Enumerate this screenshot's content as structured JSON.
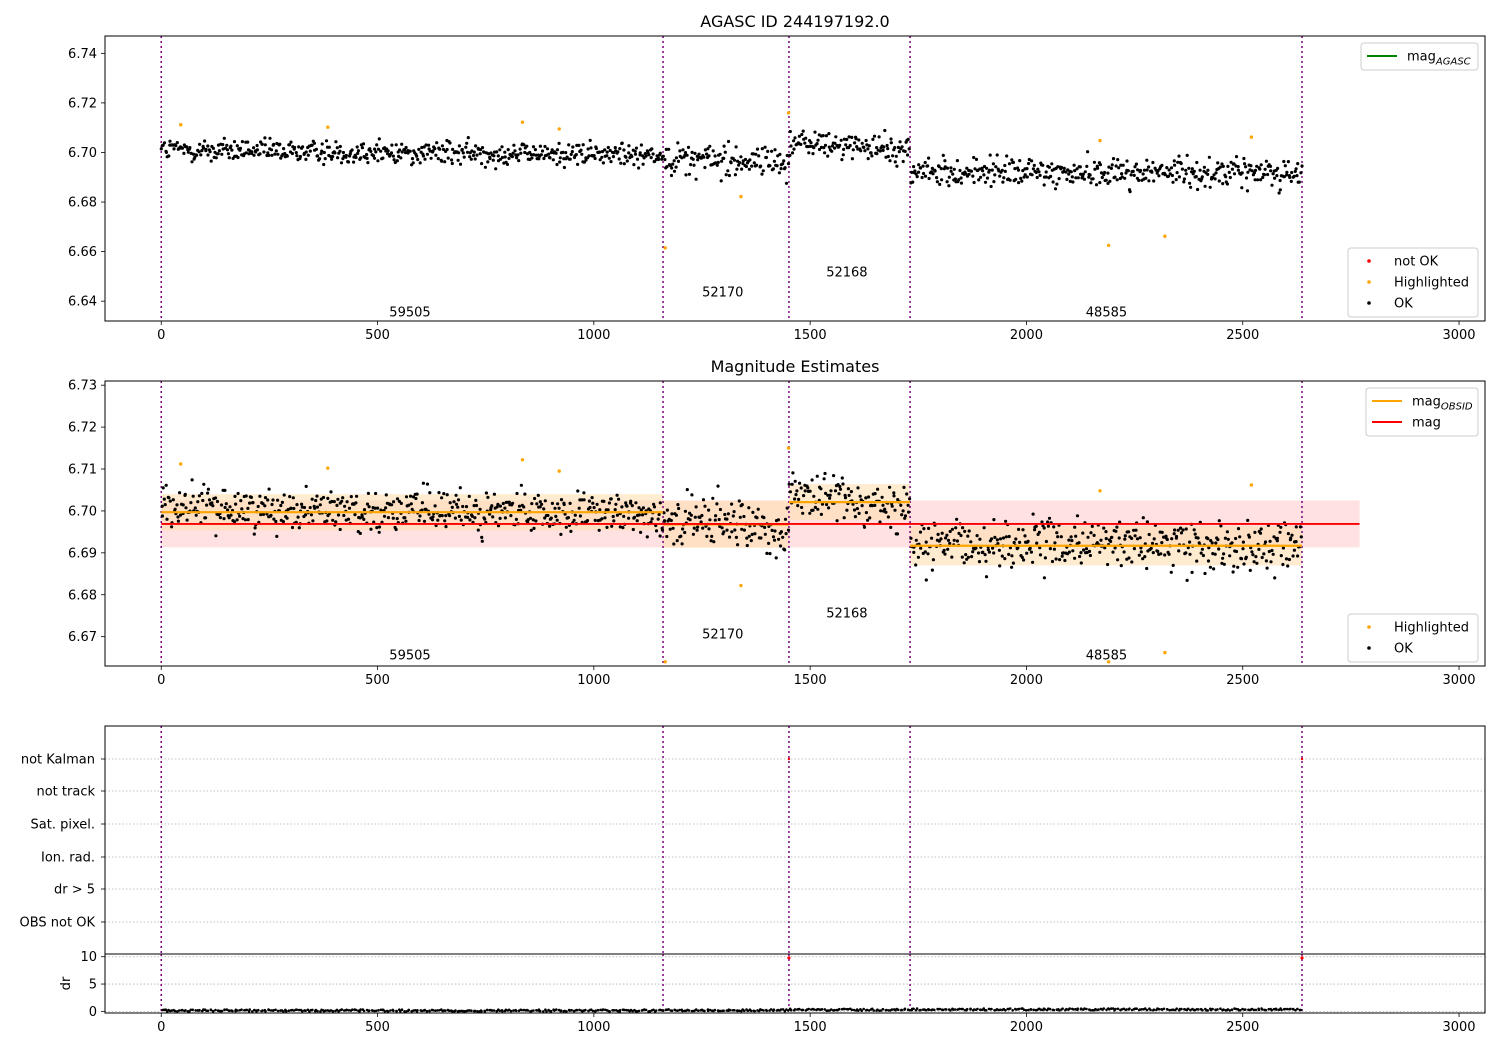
{
  "chart_data": [
    {
      "type": "scatter",
      "title": "AGASC ID 244197192.0",
      "xlim": [
        -130,
        3060
      ],
      "ylim": [
        6.632,
        6.747
      ],
      "xticks": [
        0,
        500,
        1000,
        1500,
        2000,
        2500,
        3000
      ],
      "yticks": [
        6.64,
        6.66,
        6.68,
        6.7,
        6.72,
        6.74
      ],
      "ytick_labels": [
        "6.64",
        "6.66",
        "6.68",
        "6.70",
        "6.72",
        "6.74"
      ],
      "obsid_boundaries": [
        0,
        1160,
        1451,
        1731,
        2637
      ],
      "segment_labels": [
        {
          "text": "59505",
          "x": 575,
          "y": 6.6355
        },
        {
          "text": "52170",
          "x": 1298,
          "y": 6.6435
        },
        {
          "text": "52168",
          "x": 1585,
          "y": 6.6515
        },
        {
          "text": "48585",
          "x": 2185,
          "y": 6.6355
        }
      ],
      "segment_trends": [
        {
          "x0": 0,
          "x1": 1160,
          "start": 6.701,
          "end": 6.699,
          "spread": 0.004
        },
        {
          "x0": 1160,
          "x1": 1451,
          "start": 6.698,
          "end": 6.696,
          "spread": 0.0055
        },
        {
          "x0": 1451,
          "x1": 1731,
          "start": 6.704,
          "end": 6.701,
          "spread": 0.0045
        },
        {
          "x0": 1731,
          "x1": 2637,
          "start": 6.692,
          "end": 6.692,
          "spread": 0.005
        }
      ],
      "highlighted_points": [
        {
          "x": 45,
          "y": 6.7112
        },
        {
          "x": 385,
          "y": 6.7102
        },
        {
          "x": 835,
          "y": 6.7122
        },
        {
          "x": 920,
          "y": 6.7095
        },
        {
          "x": 1165,
          "y": 6.6615
        },
        {
          "x": 1340,
          "y": 6.6822
        },
        {
          "x": 1450,
          "y": 6.716
        },
        {
          "x": 2170,
          "y": 6.7048
        },
        {
          "x": 2190,
          "y": 6.6625
        },
        {
          "x": 2320,
          "y": 6.6662
        },
        {
          "x": 2520,
          "y": 6.7062
        }
      ],
      "legend_upper": [
        {
          "label": "mag",
          "sub": "AGASC",
          "color": "#008000",
          "kind": "line"
        }
      ],
      "legend_lower": [
        {
          "label": "not OK",
          "color": "#ff0000",
          "kind": "dot"
        },
        {
          "label": "Highlighted",
          "color": "#ffa500",
          "kind": "dot"
        },
        {
          "label": "OK",
          "color": "#000000",
          "kind": "dot"
        }
      ]
    },
    {
      "type": "scatter",
      "title": "Magnitude Estimates",
      "xlim": [
        -130,
        3060
      ],
      "ylim": [
        6.663,
        6.731
      ],
      "xticks": [
        0,
        500,
        1000,
        1500,
        2000,
        2500,
        3000
      ],
      "yticks": [
        6.67,
        6.68,
        6.69,
        6.7,
        6.71,
        6.72,
        6.73
      ],
      "ytick_labels": [
        "6.67",
        "6.68",
        "6.69",
        "6.70",
        "6.71",
        "6.72",
        "6.73"
      ],
      "obsid_boundaries": [
        0,
        1160,
        1451,
        1731,
        2637
      ],
      "segment_labels": [
        {
          "text": "59505",
          "x": 575,
          "y": 6.6655
        },
        {
          "text": "52170",
          "x": 1298,
          "y": 6.6705
        },
        {
          "text": "52168",
          "x": 1585,
          "y": 6.6755
        },
        {
          "text": "48585",
          "x": 2185,
          "y": 6.6655
        }
      ],
      "mag": {
        "value": 6.6969,
        "lower": 6.6913,
        "upper": 6.7025,
        "x0": 0,
        "x1": 2770,
        "color": "#ff0000"
      },
      "mag_obsid": [
        {
          "x0": 0,
          "x1": 1160,
          "value": 6.6997,
          "lower": 6.6954,
          "upper": 6.704
        },
        {
          "x0": 1160,
          "x1": 1451,
          "value": 6.6968,
          "lower": 6.6912,
          "upper": 6.7024
        },
        {
          "x0": 1451,
          "x1": 1731,
          "value": 6.7021,
          "lower": 6.6978,
          "upper": 6.7064
        },
        {
          "x0": 1731,
          "x1": 2637,
          "value": 6.6917,
          "lower": 6.687,
          "upper": 6.6964
        }
      ],
      "highlighted_points": [
        {
          "x": 45,
          "y": 6.7112
        },
        {
          "x": 385,
          "y": 6.7102
        },
        {
          "x": 835,
          "y": 6.7122
        },
        {
          "x": 920,
          "y": 6.7095
        },
        {
          "x": 1165,
          "y": 6.664
        },
        {
          "x": 1340,
          "y": 6.6822
        },
        {
          "x": 1450,
          "y": 6.715
        },
        {
          "x": 2170,
          "y": 6.7048
        },
        {
          "x": 2190,
          "y": 6.664
        },
        {
          "x": 2320,
          "y": 6.6662
        },
        {
          "x": 2520,
          "y": 6.7062
        }
      ],
      "legend_upper": [
        {
          "label": "mag",
          "sub": "OBSID",
          "color": "#ffa500",
          "kind": "line"
        },
        {
          "label": "mag",
          "sub": "",
          "color": "#ff0000",
          "kind": "line"
        }
      ],
      "legend_lower": [
        {
          "label": "Highlighted",
          "color": "#ffa500",
          "kind": "dot"
        },
        {
          "label": "OK",
          "color": "#000000",
          "kind": "dot"
        }
      ]
    },
    {
      "type": "scatter",
      "title": "",
      "xlim": [
        -130,
        3060
      ],
      "obsid_boundaries": [
        0,
        1160,
        1451,
        1731,
        2637
      ],
      "flag_labels": [
        "not Kalman",
        "not track",
        "Sat. pixel.",
        "Ion. rad.",
        "dr > 5",
        "OBS not OK"
      ],
      "flag_points": [
        {
          "flag": "not Kalman",
          "x": 1451
        },
        {
          "flag": "not Kalman",
          "x": 2637
        }
      ]
    },
    {
      "type": "scatter",
      "title": "",
      "ylabel": "dr",
      "xlim": [
        -130,
        3060
      ],
      "ylim": [
        -0.3,
        10.5
      ],
      "xticks": [
        0,
        500,
        1000,
        1500,
        2000,
        2500,
        3000
      ],
      "yticks": [
        0,
        5,
        10
      ],
      "ytick_labels": [
        "0",
        "5",
        "10"
      ],
      "obsid_boundaries": [
        0,
        1160,
        1451,
        1731,
        2637
      ],
      "dr_segments": [
        {
          "x0": 0,
          "x1": 1160,
          "mean": 0.15
        },
        {
          "x0": 1160,
          "x1": 1451,
          "mean": 0.2
        },
        {
          "x0": 1451,
          "x1": 1731,
          "mean": 0.3
        },
        {
          "x0": 1731,
          "x1": 2637,
          "mean": 0.35
        }
      ],
      "dr_outliers": [
        {
          "x": 1451,
          "y": 9.8
        },
        {
          "x": 2637,
          "y": 9.8
        }
      ]
    }
  ],
  "colors": {
    "ok": "#000000",
    "highlighted": "#ffa500",
    "not_ok": "#ff0000",
    "boundary": "#800080",
    "mag_band": "#ffc8c8",
    "obsid_band": "#ffe0b0"
  }
}
